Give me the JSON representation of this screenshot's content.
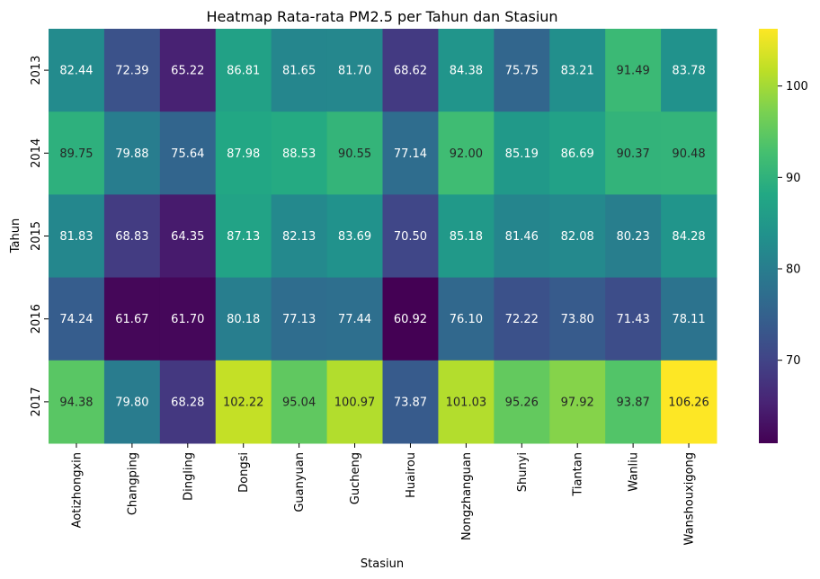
{
  "chart_data": {
    "type": "heatmap",
    "title": "Heatmap Rata-rata PM2.5 per Tahun dan Stasiun",
    "xlabel": "Stasiun",
    "ylabel": "Tahun",
    "x": [
      "Aotizhongxin",
      "Changping",
      "Dingling",
      "Dongsi",
      "Guanyuan",
      "Gucheng",
      "Huairou",
      "Nongzhanguan",
      "Shunyi",
      "Tiantan",
      "Wanliu",
      "Wanshouxigong"
    ],
    "y": [
      "2013",
      "2014",
      "2015",
      "2016",
      "2017"
    ],
    "values": [
      [
        82.44,
        72.39,
        65.22,
        86.81,
        81.65,
        81.7,
        68.62,
        84.38,
        75.75,
        83.21,
        91.49,
        83.78
      ],
      [
        89.75,
        79.88,
        75.64,
        87.98,
        88.53,
        90.55,
        77.14,
        92.0,
        85.19,
        86.69,
        90.37,
        90.48
      ],
      [
        81.83,
        68.83,
        64.35,
        87.13,
        82.13,
        83.69,
        70.5,
        85.18,
        81.46,
        82.08,
        80.23,
        84.28
      ],
      [
        74.24,
        61.67,
        61.7,
        80.18,
        77.13,
        77.44,
        60.92,
        76.1,
        72.22,
        73.8,
        71.43,
        78.11
      ],
      [
        94.38,
        79.8,
        68.28,
        102.22,
        95.04,
        100.97,
        73.87,
        101.03,
        95.26,
        97.92,
        93.87,
        106.26
      ]
    ],
    "value_labels": [
      [
        "82.44",
        "72.39",
        "65.22",
        "86.81",
        "81.65",
        "81.70",
        "68.62",
        "84.38",
        "75.75",
        "83.21",
        "91.49",
        "83.78"
      ],
      [
        "89.75",
        "79.88",
        "75.64",
        "87.98",
        "88.53",
        "90.55",
        "77.14",
        "92.00",
        "85.19",
        "86.69",
        "90.37",
        "90.48"
      ],
      [
        "81.83",
        "68.83",
        "64.35",
        "87.13",
        "82.13",
        "83.69",
        "70.50",
        "85.18",
        "81.46",
        "82.08",
        "80.23",
        "84.28"
      ],
      [
        "74.24",
        "61.67",
        "61.70",
        "80.18",
        "77.13",
        "77.44",
        "60.92",
        "76.10",
        "72.22",
        "73.80",
        "71.43",
        "78.11"
      ],
      [
        "94.38",
        "79.80",
        "68.28",
        "102.22",
        "95.04",
        "100.97",
        "73.87",
        "101.03",
        "95.26",
        "97.92",
        "93.87",
        "106.26"
      ]
    ],
    "colormap": "viridis",
    "vmin": 60.92,
    "vmax": 106.26,
    "colorbar_ticks": [
      70,
      80,
      90,
      100
    ],
    "colorbar_tick_labels": [
      "70",
      "80",
      "90",
      "100"
    ],
    "grid": false,
    "legend": "colorbar-right"
  }
}
